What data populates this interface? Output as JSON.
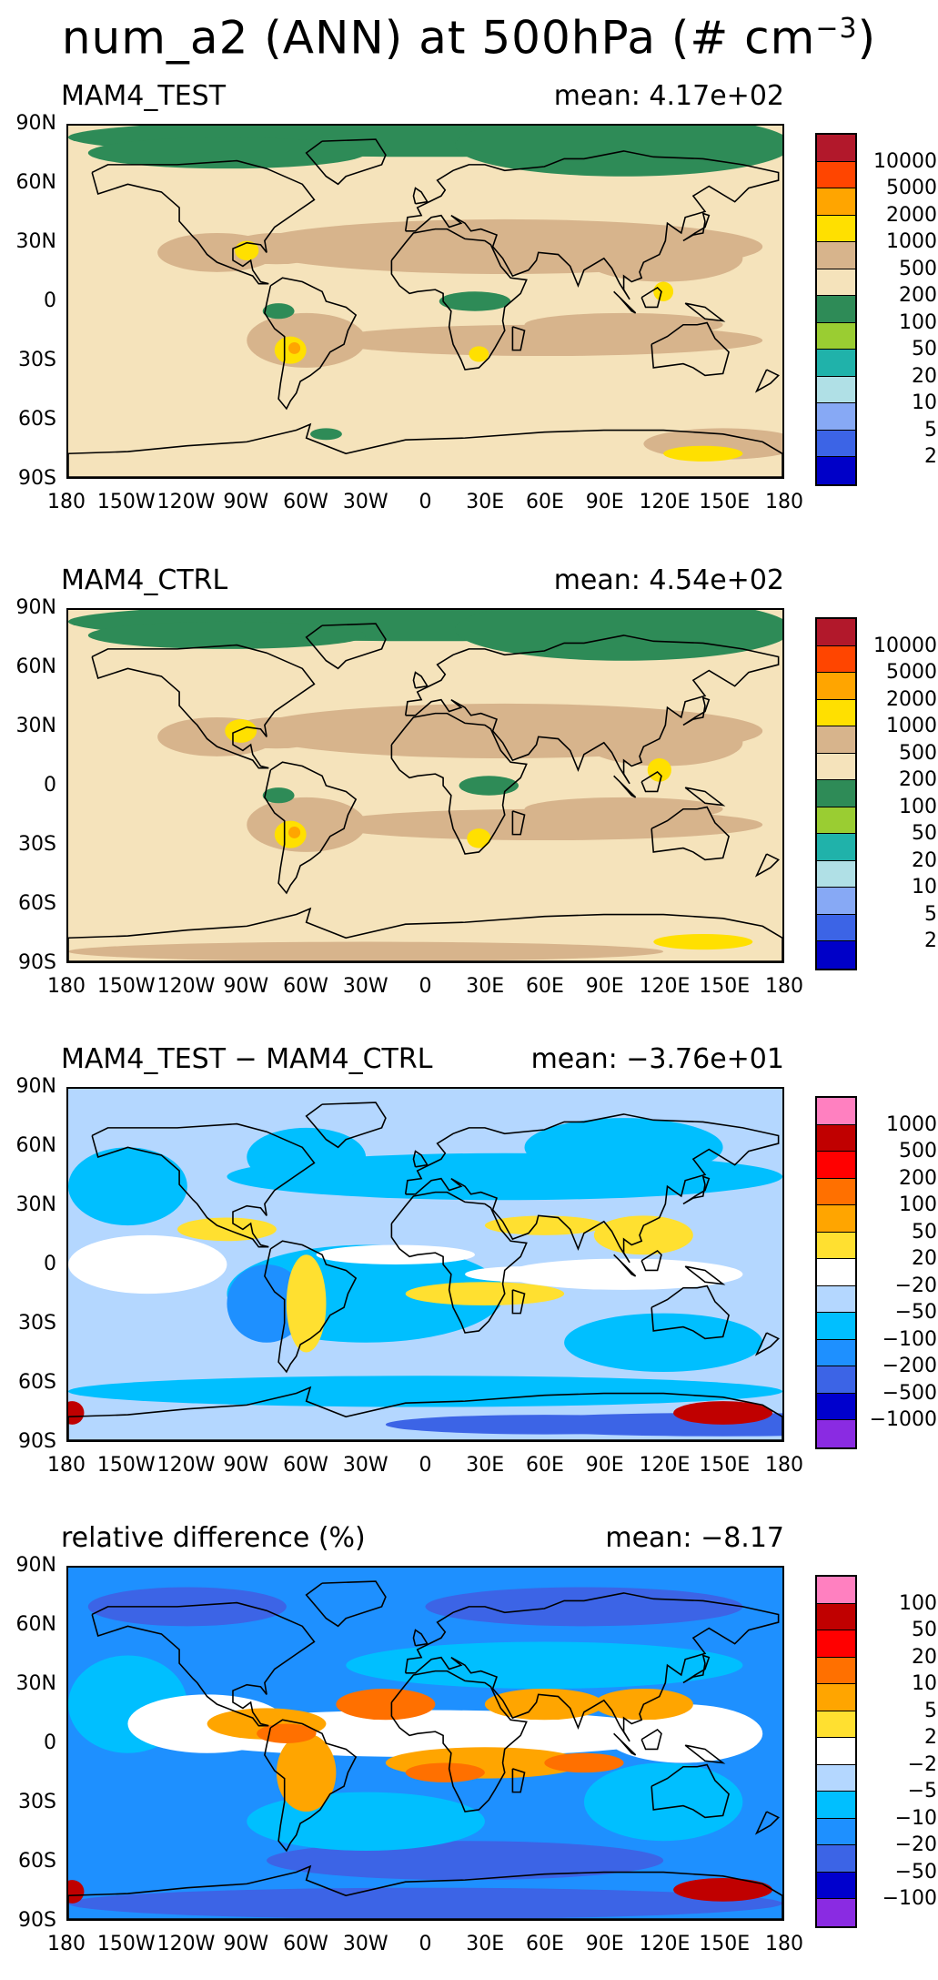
{
  "title": "num_a2 (ANN) at 500hPa (# cm",
  "title_sup": "−3",
  "title_close": ")",
  "lat_ticks": [
    "90N",
    "60N",
    "30N",
    "0",
    "30S",
    "60S",
    "90S"
  ],
  "lon_ticks": [
    "180",
    "150W",
    "120W",
    "90W",
    "60W",
    "30W",
    "0",
    "30E",
    "60E",
    "90E",
    "120E",
    "150E",
    "180"
  ],
  "panels": [
    {
      "label": "MAM4_TEST",
      "mean": "mean: 4.17e+02",
      "levels": [
        "10000",
        "5000",
        "2000",
        "1000",
        "500",
        "200",
        "100",
        "50",
        "20",
        "10",
        "5",
        "2"
      ],
      "colors": [
        "#b2182b",
        "#ff4500",
        "#ffa500",
        "#ffe000",
        "#d7b48c",
        "#f5e3bb",
        "#2e8b57",
        "#9acd32",
        "#20b2aa",
        "#b0e0e6",
        "#87a9f5",
        "#3c64e6",
        "#0000c8"
      ],
      "background": "#f5e3bb"
    },
    {
      "label": "MAM4_CTRL",
      "mean": "mean: 4.54e+02",
      "levels": [
        "10000",
        "5000",
        "2000",
        "1000",
        "500",
        "200",
        "100",
        "50",
        "20",
        "10",
        "5",
        "2"
      ],
      "colors": [
        "#b2182b",
        "#ff4500",
        "#ffa500",
        "#ffe000",
        "#d7b48c",
        "#f5e3bb",
        "#2e8b57",
        "#9acd32",
        "#20b2aa",
        "#b0e0e6",
        "#87a9f5",
        "#3c64e6",
        "#0000c8"
      ],
      "background": "#f5e3bb"
    },
    {
      "label": "MAM4_TEST − MAM4_CTRL",
      "mean": "mean: −3.76e+01",
      "levels": [
        "1000",
        "500",
        "200",
        "100",
        "50",
        "20",
        "−20",
        "−50",
        "−100",
        "−200",
        "−500",
        "−1000"
      ],
      "colors": [
        "#ff80c0",
        "#c00000",
        "#ff0000",
        "#ff7000",
        "#ffa500",
        "#ffe030",
        "#ffffff",
        "#b4d7ff",
        "#00bfff",
        "#1e90ff",
        "#3c64e6",
        "#0000cd",
        "#8a2be2"
      ],
      "background": "#b4d7ff"
    },
    {
      "label": "relative difference (%)",
      "mean": "mean: −8.17",
      "levels": [
        "100",
        "50",
        "20",
        "10",
        "5",
        "2",
        "−2",
        "−5",
        "−10",
        "−20",
        "−50",
        "−100"
      ],
      "colors": [
        "#ff80c0",
        "#c00000",
        "#ff0000",
        "#ff7000",
        "#ffa500",
        "#ffe030",
        "#ffffff",
        "#b4d7ff",
        "#00bfff",
        "#1e90ff",
        "#3c64e6",
        "#0000cd",
        "#8a2be2"
      ],
      "background": "#1e90ff"
    }
  ]
}
